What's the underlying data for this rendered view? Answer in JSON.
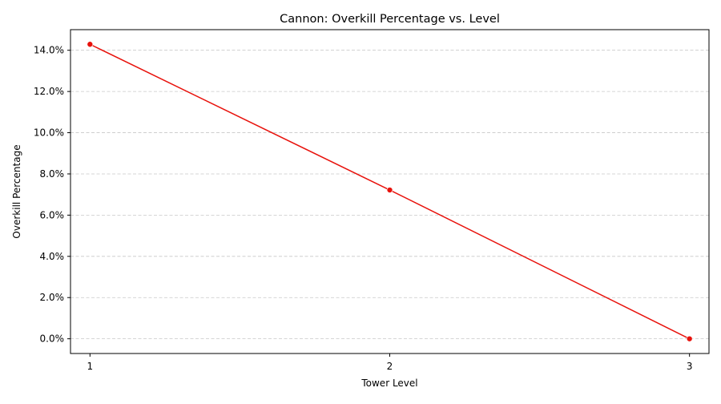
{
  "chart_data": {
    "type": "line",
    "title": "Cannon: Overkill Percentage vs. Level",
    "xlabel": "Tower Level",
    "ylabel": "Overkill Percentage",
    "x": [
      1,
      2,
      3
    ],
    "x_tick_labels": [
      "1",
      "2",
      "3"
    ],
    "series": [
      {
        "values": [
          14.29,
          7.22,
          0.0
        ],
        "color": "#e8120c",
        "marker": "circle"
      }
    ],
    "y_unit": "percent",
    "yticks": [
      0,
      2,
      4,
      6,
      8,
      10,
      12,
      14
    ],
    "y_tick_labels": [
      "0.0%",
      "2.0%",
      "4.0%",
      "6.0%",
      "8.0%",
      "10.0%",
      "12.0%",
      "14.0%"
    ],
    "xlim": [
      0.935,
      3.065
    ],
    "ylim": [
      -0.714,
      15.0
    ],
    "grid": {
      "axis": "y",
      "style": "dashed",
      "color": "#c8c8c8"
    }
  }
}
